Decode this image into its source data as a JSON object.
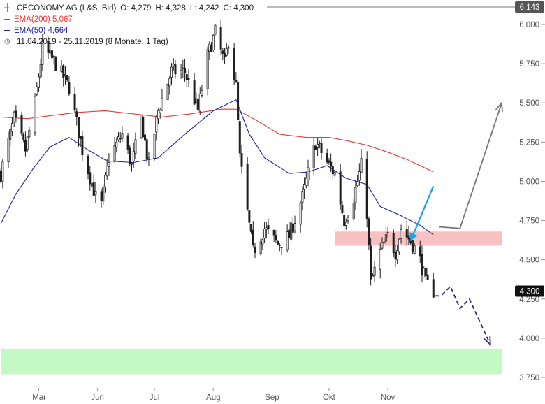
{
  "legend": {
    "title": "CECONOMY AG (L&S, Bid)",
    "ohlc": [
      {
        "label": "O:",
        "value": "4,279"
      },
      {
        "label": "H:",
        "value": "4,328"
      },
      {
        "label": "L:",
        "value": "4,242"
      },
      {
        "label": "C:",
        "value": "4,300"
      }
    ],
    "ema200": {
      "label": "EMA(200)",
      "value": "5,067",
      "color": "#e53935"
    },
    "ema50": {
      "label": "EMA(50)",
      "value": "4,664",
      "color": "#1a23a6"
    },
    "period": "11.04.2019 - 25.11.2019",
    "period_detail": "(8 Monate, 1 Tag)",
    "icons": [
      "candlestick-icon",
      "clock-icon"
    ]
  },
  "badges": {
    "high": "6,143",
    "last": "4,300"
  },
  "chart_data": {
    "type": "candlestick",
    "ylim": [
      3.72,
      6.16
    ],
    "yticks": [
      {
        "v": 6.0,
        "label": "6,000"
      },
      {
        "v": 5.75,
        "label": "5,750"
      },
      {
        "v": 5.5,
        "label": "5,500"
      },
      {
        "v": 5.25,
        "label": "5,250"
      },
      {
        "v": 5.0,
        "label": "5,000"
      },
      {
        "v": 4.75,
        "label": "4,750"
      },
      {
        "v": 4.5,
        "label": "4,500"
      },
      {
        "v": 4.25,
        "label": "4,250"
      },
      {
        "v": 4.0,
        "label": "4,000"
      },
      {
        "v": 3.75,
        "label": "3,750"
      }
    ],
    "xticks": [
      {
        "date": "2019-05-01",
        "label": "Mai"
      },
      {
        "date": "2019-06-01",
        "label": "Jun"
      },
      {
        "date": "2019-07-01",
        "label": "Jul"
      },
      {
        "date": "2019-08-01",
        "label": "Aug"
      },
      {
        "date": "2019-09-01",
        "label": "Sep"
      },
      {
        "date": "2019-10-01",
        "label": "Okt"
      },
      {
        "date": "2019-11-01",
        "label": "Nov"
      }
    ],
    "close_path": [
      [
        "2019-04-11",
        5.05
      ],
      [
        "2019-04-18",
        5.4
      ],
      [
        "2019-04-24",
        5.2
      ],
      [
        "2019-04-29",
        5.5
      ],
      [
        "2019-05-03",
        5.85
      ],
      [
        "2019-05-10",
        5.75
      ],
      [
        "2019-05-17",
        5.6
      ],
      [
        "2019-05-24",
        5.2
      ],
      [
        "2019-05-31",
        4.9
      ],
      [
        "2019-06-03",
        4.85
      ],
      [
        "2019-06-07",
        5.15
      ],
      [
        "2019-06-14",
        5.3
      ],
      [
        "2019-06-19",
        5.1
      ],
      [
        "2019-06-24",
        5.4
      ],
      [
        "2019-06-28",
        5.1
      ],
      [
        "2019-07-03",
        5.45
      ],
      [
        "2019-07-10",
        5.7
      ],
      [
        "2019-07-17",
        5.7
      ],
      [
        "2019-07-24",
        5.45
      ],
      [
        "2019-07-29",
        5.8
      ],
      [
        "2019-08-02",
        5.95
      ],
      [
        "2019-08-07",
        5.75
      ],
      [
        "2019-08-09",
        5.9
      ],
      [
        "2019-08-13",
        5.6
      ],
      [
        "2019-08-15",
        5.15
      ],
      [
        "2019-08-19",
        4.8
      ],
      [
        "2019-08-22",
        4.55
      ],
      [
        "2019-08-28",
        4.7
      ],
      [
        "2019-09-04",
        4.6
      ],
      [
        "2019-09-10",
        4.65
      ],
      [
        "2019-09-17",
        4.9
      ],
      [
        "2019-09-24",
        5.25
      ],
      [
        "2019-10-01",
        5.1
      ],
      [
        "2019-10-04",
        5.05
      ],
      [
        "2019-10-09",
        4.75
      ],
      [
        "2019-10-14",
        4.9
      ],
      [
        "2019-10-18",
        5.1
      ],
      [
        "2019-10-21",
        4.8
      ],
      [
        "2019-10-23",
        4.35
      ],
      [
        "2019-10-28",
        4.55
      ],
      [
        "2019-11-01",
        4.65
      ],
      [
        "2019-11-05",
        4.55
      ],
      [
        "2019-11-08",
        4.7
      ],
      [
        "2019-11-13",
        4.62
      ],
      [
        "2019-11-18",
        4.5
      ],
      [
        "2019-11-21",
        4.35
      ],
      [
        "2019-11-25",
        4.3
      ]
    ],
    "ema200_series": [
      [
        "2019-04-11",
        5.41
      ],
      [
        "2019-04-25",
        5.4
      ],
      [
        "2019-05-08",
        5.42
      ],
      [
        "2019-05-22",
        5.44
      ],
      [
        "2019-06-05",
        5.45
      ],
      [
        "2019-06-20",
        5.43
      ],
      [
        "2019-07-05",
        5.41
      ],
      [
        "2019-07-20",
        5.43
      ],
      [
        "2019-08-05",
        5.46
      ],
      [
        "2019-08-13",
        5.46
      ],
      [
        "2019-08-25",
        5.38
      ],
      [
        "2019-09-05",
        5.3
      ],
      [
        "2019-09-19",
        5.28
      ],
      [
        "2019-10-01",
        5.28
      ],
      [
        "2019-10-10",
        5.26
      ],
      [
        "2019-10-21",
        5.23
      ],
      [
        "2019-10-31",
        5.19
      ],
      [
        "2019-11-11",
        5.14
      ],
      [
        "2019-11-25",
        5.06
      ]
    ],
    "ema50_series": [
      [
        "2019-04-11",
        4.73
      ],
      [
        "2019-04-19",
        4.92
      ],
      [
        "2019-04-28",
        5.08
      ],
      [
        "2019-05-07",
        5.22
      ],
      [
        "2019-05-17",
        5.28
      ],
      [
        "2019-05-27",
        5.2
      ],
      [
        "2019-06-06",
        5.13
      ],
      [
        "2019-06-20",
        5.12
      ],
      [
        "2019-07-03",
        5.15
      ],
      [
        "2019-07-17",
        5.3
      ],
      [
        "2019-08-01",
        5.45
      ],
      [
        "2019-08-13",
        5.52
      ],
      [
        "2019-08-20",
        5.3
      ],
      [
        "2019-08-28",
        5.15
      ],
      [
        "2019-09-10",
        5.05
      ],
      [
        "2019-09-20",
        5.06
      ],
      [
        "2019-09-30",
        5.1
      ],
      [
        "2019-10-10",
        5.02
      ],
      [
        "2019-10-21",
        4.98
      ],
      [
        "2019-10-28",
        4.84
      ],
      [
        "2019-11-08",
        4.78
      ],
      [
        "2019-11-18",
        4.72
      ],
      [
        "2019-11-25",
        4.66
      ]
    ],
    "zones": [
      {
        "name": "resistance",
        "from_date": "2019-10-04",
        "to_date": "2019-12-31",
        "y_low": 4.59,
        "y_high": 4.68,
        "color": "#f9c2c2"
      },
      {
        "name": "support",
        "from_date": "2019-04-11",
        "to_date": "2019-12-31",
        "y_low": 3.77,
        "y_high": 3.93,
        "color": "#c4f9c4"
      }
    ],
    "arrows": {
      "blue": {
        "from": [
          "2019-11-25",
          4.97
        ],
        "to": [
          "2019-11-13",
          4.62
        ],
        "color": "#1aa3e8"
      },
      "gray_up": [
        [
          "2019-11-28",
          4.71
        ],
        [
          "2019-12-09",
          4.7
        ],
        [
          "2019-12-31",
          5.5
        ]
      ],
      "gray_color": "#777777",
      "navy_dashed": [
        [
          "2019-11-26",
          4.27
        ],
        [
          "2019-11-29",
          4.27
        ],
        [
          "2019-12-04",
          4.33
        ],
        [
          "2019-12-09",
          4.19
        ],
        [
          "2019-12-14",
          4.25
        ],
        [
          "2019-12-25",
          3.96
        ]
      ],
      "navy_color": "#2d2d8c"
    },
    "grid": false,
    "candle_color": "#1f1f1f"
  }
}
